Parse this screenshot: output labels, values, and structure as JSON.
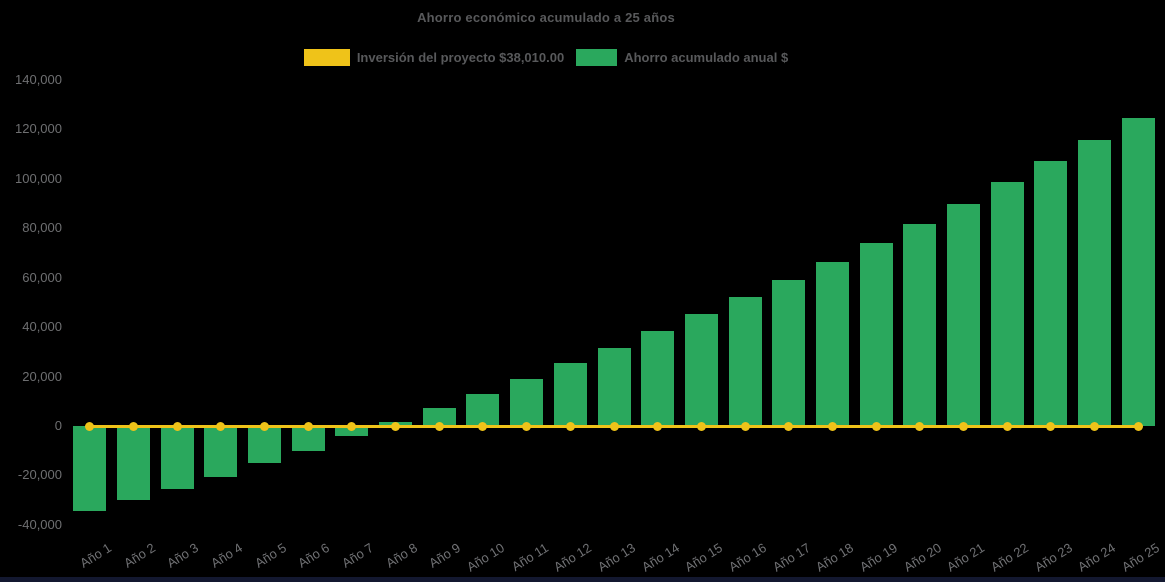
{
  "page": {
    "background": "#000000",
    "bottom_strip_color": "#131830"
  },
  "chart_data": {
    "type": "bar",
    "title": "Ahorro económico acumulado a 25 años",
    "legend_position": "top",
    "grid": false,
    "categories": [
      "Año 1",
      "Año 2",
      "Año 3",
      "Año 4",
      "Año 5",
      "Año 6",
      "Año 7",
      "Año 8",
      "Año 9",
      "Año 10",
      "Año 11",
      "Año 12",
      "Año 13",
      "Año 14",
      "Año 15",
      "Año 16",
      "Año 17",
      "Año 18",
      "Año 19",
      "Año 20",
      "Año 21",
      "Año 22",
      "Año 23",
      "Año 24",
      "Año 25"
    ],
    "legend": [
      {
        "label": "Inversión del proyecto $38,010.00",
        "color": "#EFC319"
      },
      {
        "label": "Ahorro acumulado anual $",
        "color": "#2AA85D"
      }
    ],
    "series": [
      {
        "name": "Inversión del proyecto $38,010.00",
        "type": "line",
        "color": "#EFC319",
        "marker": "circle",
        "values": [
          0,
          0,
          0,
          0,
          0,
          0,
          0,
          0,
          0,
          0,
          0,
          0,
          0,
          0,
          0,
          0,
          0,
          0,
          0,
          0,
          0,
          0,
          0,
          0,
          0
        ]
      },
      {
        "name": "Ahorro acumulado anual $",
        "type": "bar",
        "color": "#2AA85D",
        "values": [
          -34400,
          -30000,
          -25300,
          -20600,
          -15100,
          -10000,
          -3900,
          1700,
          7100,
          12900,
          19200,
          25300,
          31500,
          38300,
          45300,
          52100,
          59200,
          66400,
          74000,
          81900,
          89800,
          98700,
          107100,
          115900,
          124800
        ]
      }
    ],
    "xlabel": "",
    "ylabel": "",
    "ylim": [
      -40000,
      140000
    ],
    "ytick_step": 20000,
    "ytick_labels": [
      "140,000",
      "120,000",
      "100,000",
      "80,000",
      "60,000",
      "40,000",
      "20,000",
      "0",
      "-20,000",
      "-40,000"
    ]
  }
}
